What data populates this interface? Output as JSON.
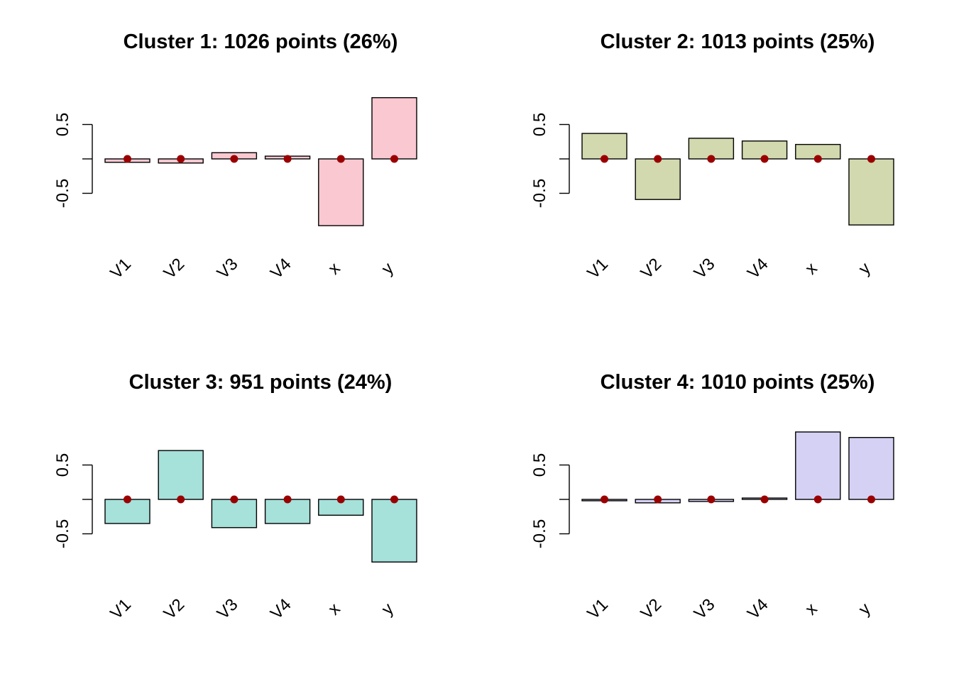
{
  "chart_data": [
    {
      "type": "bar",
      "title": "Cluster 1: 1026 points (26%)",
      "categories": [
        "V1",
        "V2",
        "V3",
        "V4",
        "x",
        "y"
      ],
      "values": [
        -0.05,
        -0.06,
        0.09,
        0.04,
        -0.97,
        0.89
      ],
      "reference_points": [
        0,
        0,
        0,
        0,
        0,
        0
      ],
      "yticks": [
        "-0.5",
        "0.5"
      ],
      "ylim": [
        -1.2,
        1.2
      ],
      "color": "#f9c8d1"
    },
    {
      "type": "bar",
      "title": "Cluster 2: 1013 points (25%)",
      "categories": [
        "V1",
        "V2",
        "V3",
        "V4",
        "x",
        "y"
      ],
      "values": [
        0.37,
        -0.59,
        0.3,
        0.26,
        0.21,
        -0.96
      ],
      "reference_points": [
        0,
        0,
        0,
        0,
        0,
        0
      ],
      "yticks": [
        "-0.5",
        "0.5"
      ],
      "ylim": [
        -1.2,
        1.2
      ],
      "color": "#d3d9ae"
    },
    {
      "type": "bar",
      "title": "Cluster 3: 951 points (24%)",
      "categories": [
        "V1",
        "V2",
        "V3",
        "V4",
        "x",
        "y"
      ],
      "values": [
        -0.35,
        0.71,
        -0.41,
        -0.35,
        -0.23,
        -0.91
      ],
      "reference_points": [
        0,
        0,
        0,
        0,
        0,
        0
      ],
      "yticks": [
        "-0.5",
        "0.5"
      ],
      "ylim": [
        -1.2,
        1.2
      ],
      "color": "#a6e1da"
    },
    {
      "type": "bar",
      "title": "Cluster 4: 1010 points (25%)",
      "categories": [
        "V1",
        "V2",
        "V3",
        "V4",
        "x",
        "y"
      ],
      "values": [
        -0.02,
        -0.05,
        -0.03,
        0.02,
        0.98,
        0.9
      ],
      "reference_points": [
        0,
        0,
        0,
        0,
        0,
        0
      ],
      "yticks": [
        "-0.5",
        "0.5"
      ],
      "ylim": [
        -1.2,
        1.2
      ],
      "color": "#d5d1f5"
    }
  ]
}
